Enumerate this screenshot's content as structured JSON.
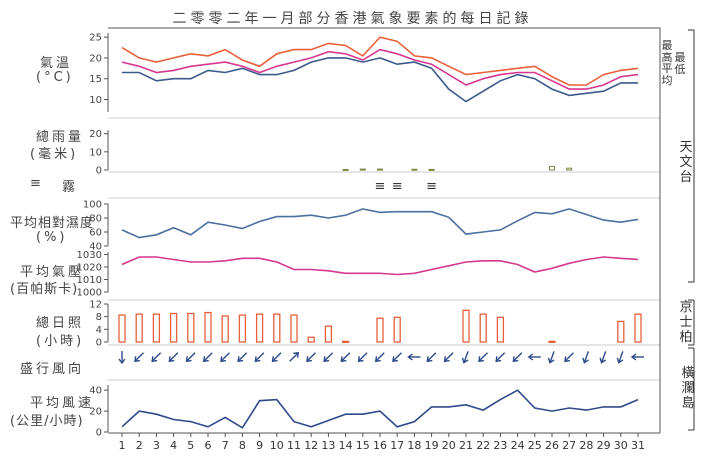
{
  "title": "二零零二年一月部分香港氣象要素的每日記錄",
  "labels": {
    "temp": "氣溫",
    "temp_unit": "(°C)",
    "rain": "總雨量",
    "rain_unit": "(毫米)",
    "fog_symbol": "≡",
    "fog": "霧",
    "humidity": "平均相對濕度",
    "humidity_unit": "(%)",
    "pressure": "平均氣壓",
    "pressure_unit": "(百帕斯卡)",
    "sunshine": "總日照",
    "sunshine_unit": "(小時)",
    "wind_dir": "盛行風向",
    "wind_speed": "平均風速",
    "wind_speed_unit": "(公里/小時)"
  },
  "legend": {
    "max": "最高",
    "mean": "平均",
    "min": "最低"
  },
  "stations": {
    "observatory": "天文台",
    "kingspark": "京士柏",
    "waglan": "橫瀾島"
  },
  "colors": {
    "max": "#e8603a",
    "mean": "#d6378f",
    "min": "#3a5a8c",
    "humidity": "#4a6fa0",
    "pressure": "#d6378f",
    "sunshine": "#e8603a",
    "rain": "#7a8a40",
    "wind": "#2e4a8a",
    "axis": "#555555"
  },
  "chart_data": {
    "days": [
      1,
      2,
      3,
      4,
      5,
      6,
      7,
      8,
      9,
      10,
      11,
      12,
      13,
      14,
      15,
      16,
      17,
      18,
      19,
      20,
      21,
      22,
      23,
      24,
      25,
      26,
      27,
      28,
      29,
      30,
      31
    ],
    "temperature": {
      "yticks": [
        10,
        15,
        20,
        25
      ],
      "ylim": [
        7,
        26
      ],
      "max": [
        22.5,
        20,
        19,
        20,
        21,
        20.5,
        22,
        19.5,
        18,
        21,
        22,
        22,
        23.5,
        23,
        20.5,
        25,
        24,
        20.5,
        20,
        18,
        16,
        16.5,
        17,
        17.5,
        18,
        15.5,
        13.5,
        13.5,
        16,
        17,
        17.5
      ],
      "mean": [
        19,
        18,
        16.5,
        17,
        18,
        18.5,
        19,
        18,
        16.5,
        18,
        19,
        20,
        21.5,
        21,
        19.5,
        22,
        21,
        19.5,
        18.5,
        16,
        13.5,
        15,
        16,
        16.5,
        16.5,
        14.5,
        12.5,
        12.5,
        13.5,
        15.5,
        16
      ],
      "min": [
        16.5,
        16.5,
        14.5,
        15,
        15,
        17,
        16.5,
        17.5,
        16,
        16,
        17,
        19,
        20,
        20,
        19,
        20,
        18.5,
        19,
        17.5,
        12.5,
        9.5,
        12,
        14.5,
        16,
        15,
        12.5,
        11,
        11.5,
        12,
        14,
        14
      ]
    },
    "rainfall": {
      "yticks": [
        0,
        10,
        20
      ],
      "ylim": [
        0,
        22
      ],
      "values": [
        0,
        0,
        0,
        0,
        0,
        0,
        0,
        0,
        0,
        0,
        0,
        0,
        0,
        0.3,
        0.5,
        0.5,
        0,
        0.4,
        0.3,
        0,
        0,
        0,
        0,
        0,
        0,
        2,
        1,
        0,
        0,
        0,
        0
      ]
    },
    "fog_days": [
      16,
      17,
      19
    ],
    "humidity": {
      "yticks": [
        40,
        60,
        80,
        100
      ],
      "ylim": [
        40,
        100
      ],
      "values": [
        63,
        52,
        56,
        66,
        56,
        74,
        70,
        65,
        75,
        82,
        82,
        84,
        80,
        84,
        93,
        88,
        89,
        89,
        89,
        81,
        57,
        60,
        63,
        76,
        88,
        86,
        93,
        85,
        77,
        74,
        78
      ]
    },
    "pressure": {
      "yticks": [
        1000,
        1010,
        1020,
        1030
      ],
      "ylim": [
        1000,
        1032
      ],
      "values": [
        1022,
        1028,
        1028,
        1026,
        1024,
        1024,
        1025,
        1027,
        1027,
        1024,
        1018,
        1018,
        1017,
        1015,
        1015,
        1015,
        1014,
        1015,
        1018,
        1021,
        1024,
        1025,
        1025,
        1022,
        1016,
        1019,
        1023,
        1026,
        1028,
        1027,
        1026
      ]
    },
    "sunshine": {
      "yticks": [
        0,
        4,
        8,
        12
      ],
      "ylim": [
        0,
        12
      ],
      "values": [
        8.5,
        8.8,
        8.8,
        9,
        9,
        9.3,
        8.2,
        8.5,
        8.8,
        8.8,
        8.5,
        1.5,
        5,
        0.2,
        0,
        7.5,
        7.8,
        0,
        0,
        0,
        10,
        8.8,
        7.8,
        0,
        0,
        0.2,
        0,
        0,
        0,
        6.5,
        8.8
      ]
    },
    "wind_direction_deg": [
      0,
      45,
      45,
      45,
      45,
      45,
      45,
      45,
      45,
      45,
      225,
      45,
      45,
      45,
      45,
      45,
      45,
      90,
      45,
      45,
      20,
      45,
      45,
      45,
      90,
      20,
      45,
      20,
      20,
      20,
      90
    ],
    "wind_speed": {
      "yticks": [
        0,
        20,
        40
      ],
      "ylim": [
        0,
        45
      ],
      "values": [
        5,
        20,
        17,
        12,
        10,
        5,
        14,
        4,
        30,
        31,
        10,
        5,
        11,
        17,
        17,
        20,
        5,
        10,
        24,
        24,
        26,
        21,
        31,
        40,
        23,
        20,
        23,
        21,
        24,
        24,
        31
      ]
    }
  }
}
